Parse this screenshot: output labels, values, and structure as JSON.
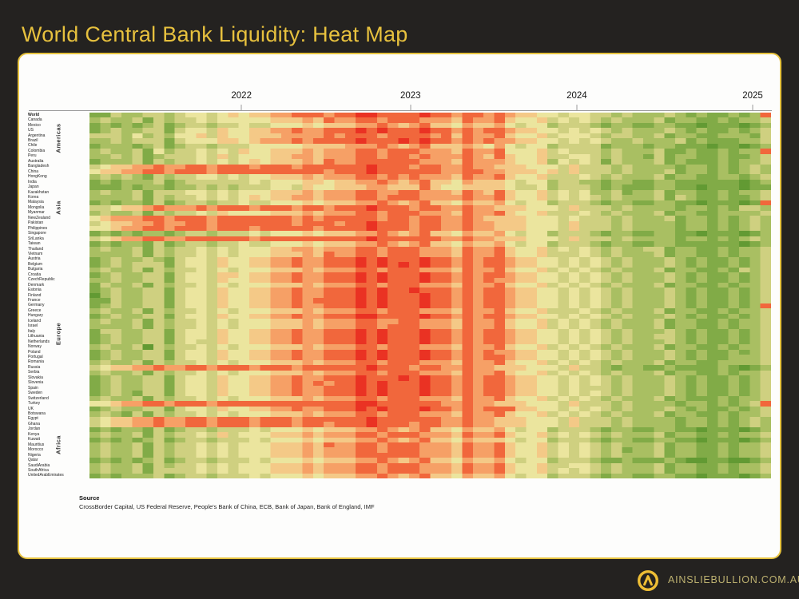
{
  "title": "World Central Bank Liquidity: Heat Map",
  "footer": {
    "brand": "AINSLIEBULLION.COM.AU",
    "logo": "ainslie-a-circle-icon"
  },
  "source": {
    "label": "Source",
    "text": "CrossBorder Capital, US Federal Reserve, People's Bank of China, ECB, Bank of Japan, Bank of England, IMF"
  },
  "colors": {
    "background": "#242220",
    "accent_gold": "#e7c13e",
    "panel_border": "#e7c33f",
    "panel_background": "#fdfdfc",
    "brand_text": "#bdb170",
    "axis": "#9b9b9b"
  },
  "chart_data": {
    "type": "heatmap",
    "title": "World Central Bank Liquidity: Heat Map",
    "description": "Weekly/monthly central bank liquidity conditions per country, early 2021 to early 2025. Green = loose/easing liquidity, red = tight liquidity. Deep red core spans mid-2022 through mid-2023, easing to yellow-green through 2024.",
    "x_axis": {
      "range_start": "2021",
      "range_end": "2025",
      "ticks": [
        {
          "label": "2022",
          "pct": 22.3
        },
        {
          "label": "2023",
          "pct": 47.1
        },
        {
          "label": "2024",
          "pct": 71.5
        },
        {
          "label": "2025",
          "pct": 97.3
        }
      ]
    },
    "legend": "none shown (implicit red-yellow-green scale)",
    "color_scale": {
      "0": "#41831f",
      "1": "#629a33",
      "2": "#81ab47",
      "3": "#a9bf62",
      "4": "#cfd080",
      "5": "#ebe59e",
      "6": "#f4c987",
      "7": "#f6a066",
      "8": "#f1673c",
      "9": "#ea3223"
    },
    "groups": [
      {
        "name": "Americas",
        "start": 1,
        "end": 8
      },
      {
        "name": "Asia",
        "start": 9,
        "end": 27
      },
      {
        "name": "Europe",
        "start": 28,
        "end": 57
      },
      {
        "name": "Africa",
        "start": 58,
        "end": 70
      }
    ],
    "rows": [
      {
        "label": "World",
        "bold": true,
        "levels": "2243344345545656677888788998888988788787665545544343334323223238"
      },
      {
        "label": "Canada",
        "levels": "3433424344545555566676877887888777687786556454543433342332232334"
      },
      {
        "label": "Mexico",
        "levels": "2323234234434454455565666778767866576675455344432332233221222123"
      },
      {
        "label": "US",
        "levels": "2343344245546556677877888989888988787887665545454343334323223234"
      },
      {
        "label": "Argentina",
        "levels": "4443534355646556667777878887888878687786556455543443342332233324"
      },
      {
        "label": "Brazil",
        "levels": "3343444245556656777878888988898988787877665545454334333423222334"
      },
      {
        "label": "Chile",
        "levels": "2333234234434445555566667778767866676575455344442333233222122123"
      },
      {
        "label": "Colombia",
        "levels": "3433425344545465566676777887888777687785556454443433342232232338"
      },
      {
        "label": "Peru",
        "levels": "3343423444546455566776777887887877787686556445543433242332232234"
      },
      {
        "label": "Australia",
        "levels": "2333424344545456566676877888888777687776556354542433342322232334"
      },
      {
        "label": "Bangladesh",
        "levels": "4566778778878887888788888898887887787766655546444343333233232343"
      },
      {
        "label": "China",
        "levels": "5667788788878888888888788898888887788776665646444343334233232343"
      },
      {
        "label": "HongKong",
        "levels": "3434324344554545566676777887878777687786556444543433342332233234"
      },
      {
        "label": "India",
        "levels": "2323334234444445455566566778767866576665455344332332233222222123"
      },
      {
        "label": "Japan",
        "levels": "2223233233434344455465566677666865566665445344432322233221222122"
      },
      {
        "label": "Kazakhstan",
        "levels": "3433424445545455566676777887788777687686556454533423342332232334"
      },
      {
        "label": "Korea",
        "levels": "3333424344545456566776777887888777787786556454543433342432232234"
      },
      {
        "label": "Malaysia",
        "levels": "2323324234434454455565666778767866576675455344432332233221222128"
      },
      {
        "label": "Mongolia",
        "levels": "4456678777878887888788788898887887787766655546444343333233232443"
      },
      {
        "label": "Myanmar",
        "levels": "3433424344546555566676777887888777687786556444543433342332233334"
      },
      {
        "label": "NewZealand",
        "levels": "5677788788878888888787888887887887787666655545444343334233232343"
      },
      {
        "label": "Pakistan",
        "levels": "4566778778878888888788878898887887787766655546444343333233232343"
      },
      {
        "label": "Philippines",
        "levels": "5567788788878887888887888898887887787766655546444343333233232343"
      },
      {
        "label": "Singapore",
        "levels": "2323233234434445455565666778767866576675455344432332233221222123"
      },
      {
        "label": "SriLanka",
        "levels": "4567788778888887888888888898888887787766655546444343333233232343"
      },
      {
        "label": "Taiwan",
        "levels": "2323324234434454455565666778767866576675455344432332233222222123"
      },
      {
        "label": "Thailand",
        "levels": "3433424344545455566776777887888777687786556454543433442332232334"
      },
      {
        "label": "Vietnam",
        "levels": "3333424344545455566676877887888777687786556444543433342332232334"
      },
      {
        "label": "Austria",
        "levels": "2343343245546556677877888989888988787887665545454343334323223234"
      },
      {
        "label": "Belgium",
        "levels": "2343444245546556677877888989898988787887665545454343334323223234"
      },
      {
        "label": "Bulgaria",
        "levels": "3433424344545455566676777887888777687786556454543433342332232434"
      },
      {
        "label": "Croatia",
        "levels": "2343344245546656677877888989888988787887665545454343334323223234"
      },
      {
        "label": "CzechRepublic",
        "levels": "3343344245546556677877888989888988787877665545454343334323223234"
      },
      {
        "label": "Denmark",
        "levels": "2433424344545455566676777887888777687786556454543433342332232334"
      },
      {
        "label": "Estonia",
        "levels": "2343344245546556677877888989889888787887665545454343334323223234"
      },
      {
        "label": "Finland",
        "levels": "1343344245546556677877888989888988787887665545454343334323223234"
      },
      {
        "label": "France",
        "levels": "2243344245546556677878888989888988787887665545454343334323223234"
      },
      {
        "label": "Germany",
        "levels": "2343344245546556677877888989888988787887665545454343334323223238"
      },
      {
        "label": "Greece",
        "levels": "3433424344545455566676777887888777687786556444543433342332232334"
      },
      {
        "label": "Hungary",
        "levels": "2343344245546556677877888998888988787887665545454343334323223234"
      },
      {
        "label": "Iceland",
        "levels": "3433424344545455566676777887788777687786556454543433342332232334"
      },
      {
        "label": "Israel",
        "levels": "3333424344545455566676777887888777687786556454543433342332232334"
      },
      {
        "label": "Italy",
        "levels": "2443344245546556677877888989888988787887665545454343334323223234"
      },
      {
        "label": "Lithuania",
        "levels": "2343344245546556677877888989888988787887665545454343344323223234"
      },
      {
        "label": "Netherlands",
        "levels": "2343344245446556677877888989888988787887665545454343334323223234"
      },
      {
        "label": "Norway",
        "levels": "3433414344545455566676777887888777687786556454543433342332232334"
      },
      {
        "label": "Poland",
        "levels": "2343344245546556677877888989888988787877665545454343334323223234"
      },
      {
        "label": "Portugal",
        "levels": "2343344245546556677877888989888988787887665545454343334323223334"
      },
      {
        "label": "Romania",
        "levels": "3433424344545455566676777887888777687786556454543433342332233334"
      },
      {
        "label": "Russia",
        "levels": "4566778778878887888788888898887887787766655546443233223222232123"
      },
      {
        "label": "Serbia",
        "levels": "3433424344545455566676777887888777687786556454543433342332232334"
      },
      {
        "label": "Slovakia",
        "levels": "2343344245546556677877888988898988787887665545454343334323223234"
      },
      {
        "label": "Slovenia",
        "levels": "2343344245546556677878788989888988787887665545454343334323223234"
      },
      {
        "label": "Spain",
        "levels": "2343344245546556677877888989888988787887665545444343334323223234"
      },
      {
        "label": "Sweden",
        "levels": "2343244245546556677877888989888988787887665545454343334323223234"
      },
      {
        "label": "Switzerland",
        "levels": "3433424344545455566676777887888777687786556454543433342322232334"
      },
      {
        "label": "Turkey",
        "levels": "5567788788878888888888888998888887787766655546444343333233232348"
      },
      {
        "label": "UK",
        "levels": "2343344245546556677877888989888988787888665545454343334323223234"
      },
      {
        "label": "Botswana",
        "levels": "3432424344545455566676777887888777687786556454543433342332232334"
      },
      {
        "label": "Egypt",
        "levels": "4566778778878887888788888898888887787766655546444343333233232343"
      },
      {
        "label": "Ghana",
        "levels": "4566778778878887888788788898887887787766655546444343333233232343"
      },
      {
        "label": "Jordan",
        "levels": "2323324234434445455565666778767866576675455344432332233221222123"
      },
      {
        "label": "Kenya",
        "levels": "3433424344546455566676777887888777687786556454543433342332232334"
      },
      {
        "label": "Kuwait",
        "levels": "2323234234434445455565666778767866576665455344432332233221222123"
      },
      {
        "label": "Mauritius",
        "levels": "3433424344545455566676877887888777687786556454543433342332232334"
      },
      {
        "label": "Morocco",
        "levels": "3433424344545455566676777887888777687786556454543423342332232334"
      },
      {
        "label": "Nigeria",
        "levels": "3433424344545455566676777888888777687786556454543433342332232334"
      },
      {
        "label": "Qatar",
        "levels": "2323234234434445455565666778767866576675455344432232223211221123"
      },
      {
        "label": "SaudiArabia",
        "levels": "3433424344545455566676777887888777687786556445543433342332232334"
      },
      {
        "label": "SouthAfrica",
        "levels": "3433424444545455566676777887888777687786556454543433342332232334"
      },
      {
        "label": "UnitedArabEmirates",
        "levels": "2323334234434445455565666778767866576675455344432332233221222123"
      }
    ]
  }
}
